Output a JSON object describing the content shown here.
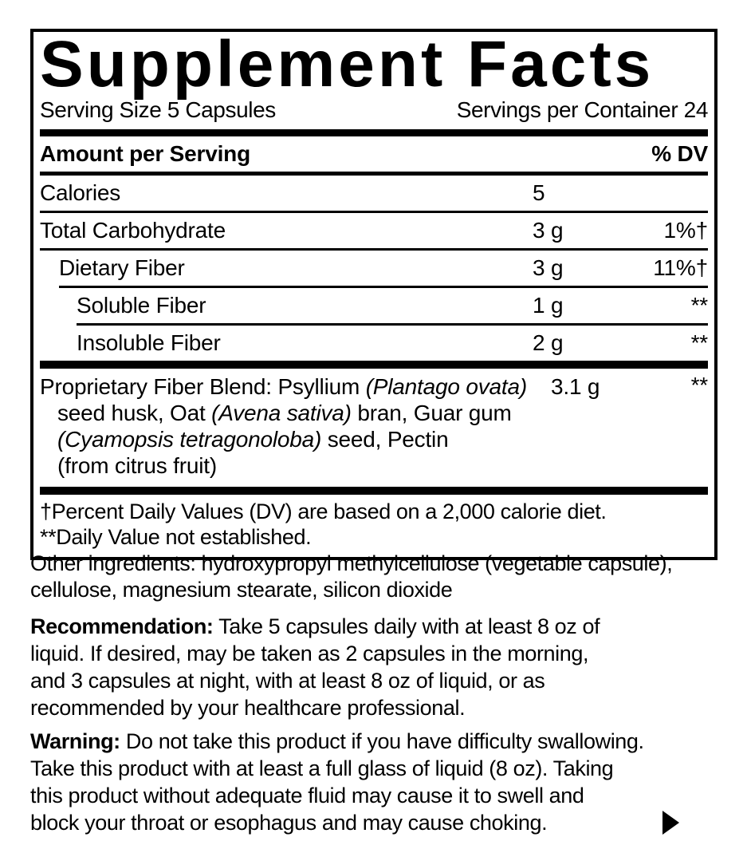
{
  "colors": {
    "text": "#000000",
    "background": "#ffffff"
  },
  "panel": {
    "title": "Supplement Facts",
    "serving_size": "Serving Size 5 Capsules",
    "servings_per_container": "Servings per Container 24"
  },
  "table": {
    "amount_header": "Amount per Serving",
    "dv_header": "% DV",
    "rows": [
      {
        "label": "Calories",
        "amount": "5",
        "dv": ""
      },
      {
        "label": "Total Carbohydrate",
        "amount": "3 g",
        "dv": "1%†"
      },
      {
        "label": "Dietary Fiber",
        "amount": "3 g",
        "dv": "11%†"
      },
      {
        "label": "Soluble Fiber",
        "amount": "1 g",
        "dv": "**"
      },
      {
        "label": "Insoluble Fiber",
        "amount": "2 g",
        "dv": "**"
      }
    ]
  },
  "blend": {
    "amount": "3.1 g",
    "dv": "**",
    "lines": [
      {
        "segments": [
          {
            "text": "Proprietary Fiber Blend: Psyllium "
          },
          {
            "text": "(Plantago ovata)",
            "italic": true
          }
        ]
      },
      {
        "segments": [
          {
            "text": "seed husk, Oat "
          },
          {
            "text": "(Avena sativa)",
            "italic": true
          },
          {
            "text": " bran, Guar gum"
          }
        ]
      },
      {
        "segments": [
          {
            "text": "(Cyamopsis tetragonoloba)",
            "italic": true
          },
          {
            "text": " seed, Pectin"
          }
        ]
      },
      {
        "segments": [
          {
            "text": "(from citrus fruit)"
          }
        ]
      }
    ]
  },
  "footnotes": [
    "†Percent Daily Values (DV) are based on a 2,000 calorie diet.",
    "**Daily Value not established."
  ],
  "other_ingredients": {
    "lines": [
      "Other ingredients: hydroxypropyl methylcellulose (vegetable capsule),",
      "cellulose, magnesium stearate, silicon dioxide"
    ]
  },
  "recommendation": {
    "lead": "Recommendation:",
    "lines": [
      " Take 5 capsules daily with at least 8 oz of",
      "liquid. If desired, may be taken as 2 capsules in the morning,",
      "and 3 capsules at night, with at least 8 oz of liquid, or as",
      "recommended by your healthcare professional."
    ]
  },
  "warning": {
    "lead": "Warning:",
    "lines": [
      " Do not take this product if you have difficulty swallowing.",
      "Take this product with at least a full glass of liquid (8 oz). Taking",
      "this product without adequate fluid may cause it to swell and",
      "block your throat or esophagus and may cause choking."
    ]
  },
  "icons": {
    "corner_arrow": "right-pointing solid triangle"
  }
}
